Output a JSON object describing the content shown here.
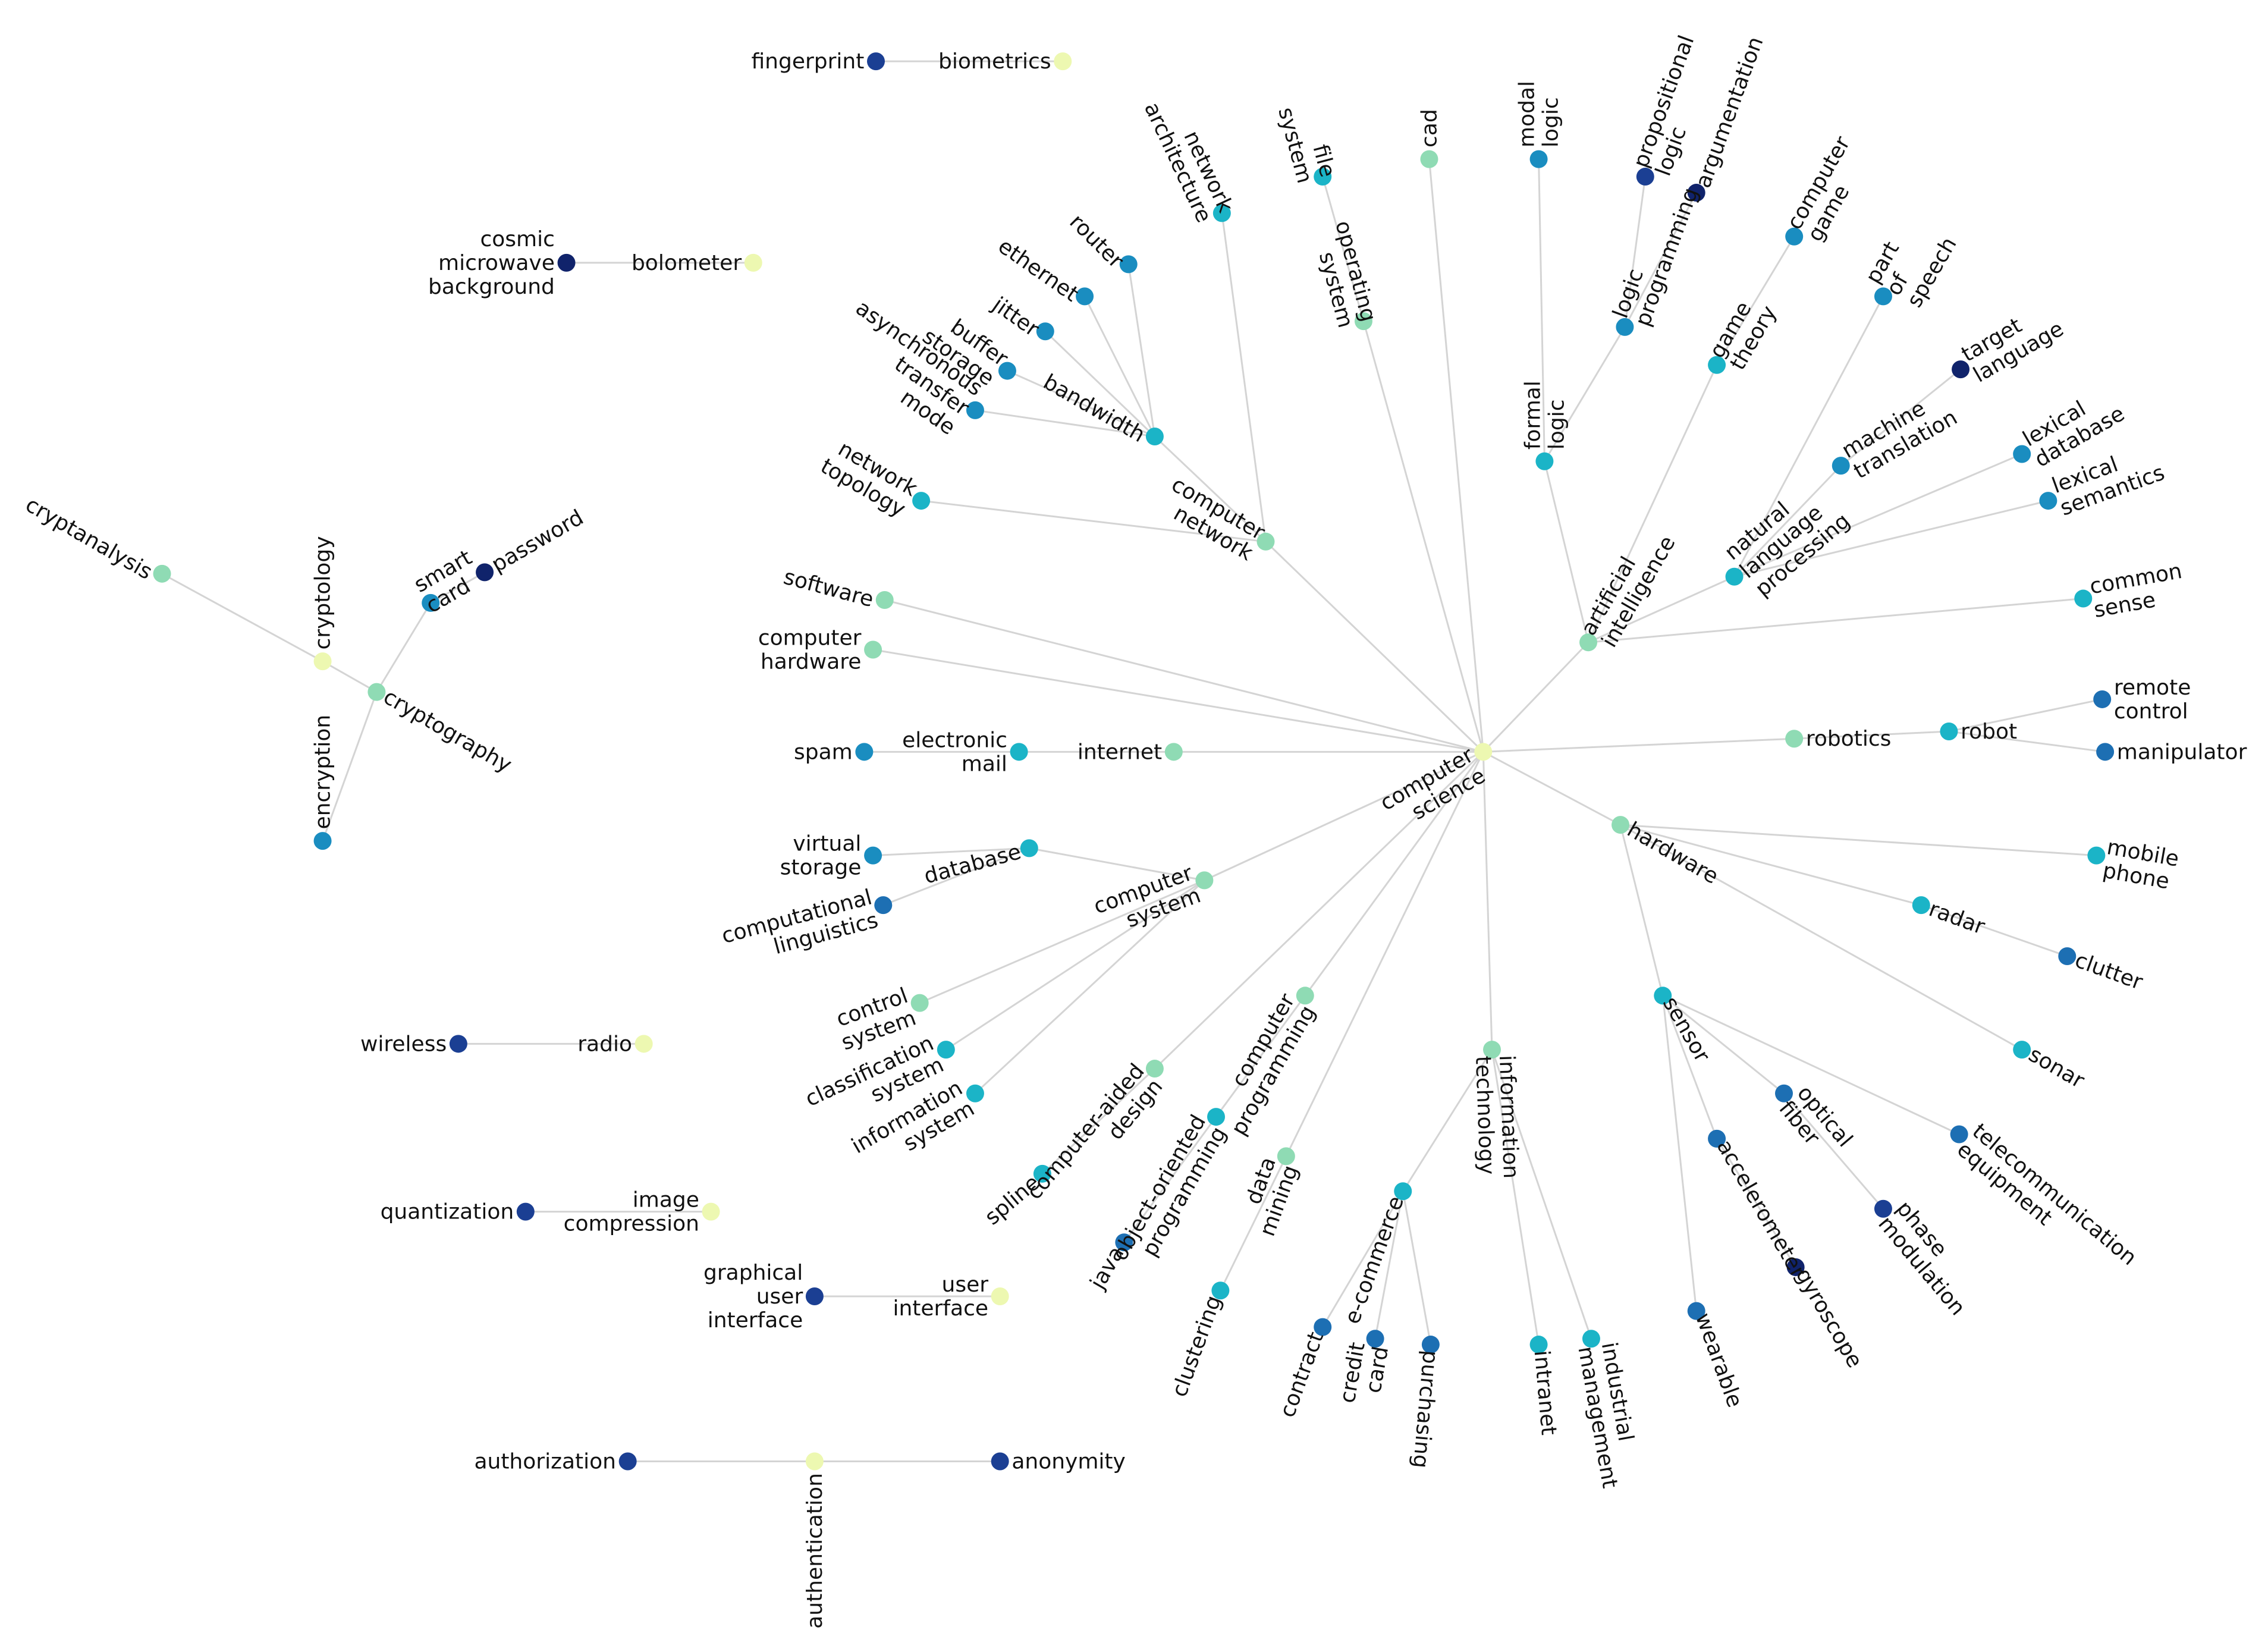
{
  "palette": {
    "level0": "#edf8b1",
    "level1": "#8fdbb4",
    "level1b": "#5fcfc0",
    "level2": "#1bb4c7",
    "level3": "#1a8dc0",
    "level4": "#1d6fb3",
    "level5": "#1b3f93",
    "level6": "#10236b",
    "edge": "#d4d4d4"
  },
  "nodes": [
    {
      "id": "fingerprint",
      "label": [
        "fingerprint"
      ],
      "level": 5
    },
    {
      "id": "biometrics",
      "label": [
        "biometrics"
      ],
      "level": 0
    },
    {
      "id": "cosmic",
      "label": [
        "cosmic",
        "microwave",
        "background"
      ],
      "level": 6
    },
    {
      "id": "bolometer",
      "label": [
        "bolometer"
      ],
      "level": 0
    },
    {
      "id": "cryptanalysis",
      "label": [
        "cryptanalysis"
      ],
      "level": 1
    },
    {
      "id": "cryptology",
      "label": [
        "cryptology"
      ],
      "level": 0
    },
    {
      "id": "cryptography",
      "label": [
        "cryptography"
      ],
      "level": 1
    },
    {
      "id": "smartcard",
      "label": [
        "smart",
        "card"
      ],
      "level": 3
    },
    {
      "id": "password",
      "label": [
        "password"
      ],
      "level": 6
    },
    {
      "id": "encryption",
      "label": [
        "encryption"
      ],
      "level": 3
    },
    {
      "id": "wireless",
      "label": [
        "wireless"
      ],
      "level": 5
    },
    {
      "id": "radio",
      "label": [
        "radio"
      ],
      "level": 0
    },
    {
      "id": "quantization",
      "label": [
        "quantization"
      ],
      "level": 5
    },
    {
      "id": "imagecomp",
      "label": [
        "image",
        "compression"
      ],
      "level": 0
    },
    {
      "id": "gui",
      "label": [
        "graphical",
        "user",
        "interface"
      ],
      "level": 5
    },
    {
      "id": "ui",
      "label": [
        "user",
        "interface"
      ],
      "level": 0
    },
    {
      "id": "authorization",
      "label": [
        "authorization"
      ],
      "level": 5
    },
    {
      "id": "authentication",
      "label": [
        "authentication"
      ],
      "level": 0
    },
    {
      "id": "anonymity",
      "label": [
        "anonymity"
      ],
      "level": 5
    },
    {
      "id": "cs",
      "label": [
        "computer",
        "science"
      ],
      "level": 0
    },
    {
      "id": "software",
      "label": [
        "software"
      ],
      "level": 1
    },
    {
      "id": "comphw",
      "label": [
        "computer",
        "hardware"
      ],
      "level": 1
    },
    {
      "id": "internet",
      "label": [
        "internet"
      ],
      "level": 1
    },
    {
      "id": "email",
      "label": [
        "electronic",
        "mail"
      ],
      "level": 2
    },
    {
      "id": "spam",
      "label": [
        "spam"
      ],
      "level": 3
    },
    {
      "id": "compnet",
      "label": [
        "computer",
        "network"
      ],
      "level": 1
    },
    {
      "id": "bandwidth",
      "label": [
        "bandwidth"
      ],
      "level": 2
    },
    {
      "id": "router",
      "label": [
        "router"
      ],
      "level": 3
    },
    {
      "id": "ethernet",
      "label": [
        "ethernet"
      ],
      "level": 3
    },
    {
      "id": "jitter",
      "label": [
        "jitter"
      ],
      "level": 3
    },
    {
      "id": "bufferstorage",
      "label": [
        "buffer",
        "storage"
      ],
      "level": 3
    },
    {
      "id": "atm",
      "label": [
        "asynchronous",
        "transfer",
        "mode"
      ],
      "level": 3
    },
    {
      "id": "netarch",
      "label": [
        "network",
        "architecture"
      ],
      "level": 2
    },
    {
      "id": "nettopo",
      "label": [
        "network",
        "topology"
      ],
      "level": 2
    },
    {
      "id": "os",
      "label": [
        "operating",
        "system"
      ],
      "level": 1
    },
    {
      "id": "filesystem",
      "label": [
        "file",
        "system"
      ],
      "level": 2
    },
    {
      "id": "cad",
      "label": [
        "cad"
      ],
      "level": 1
    },
    {
      "id": "ai",
      "label": [
        "artificial",
        "intelligence"
      ],
      "level": 1
    },
    {
      "id": "formallogic",
      "label": [
        "formal",
        "logic"
      ],
      "level": 2
    },
    {
      "id": "modallogic",
      "label": [
        "modal",
        "logic"
      ],
      "level": 3
    },
    {
      "id": "logicprog",
      "label": [
        "logic",
        "programming"
      ],
      "level": 3
    },
    {
      "id": "proplogic",
      "label": [
        "propositional",
        "logic"
      ],
      "level": 5
    },
    {
      "id": "argumentation",
      "label": [
        "argumentation"
      ],
      "level": 6
    },
    {
      "id": "gametheory",
      "label": [
        "game",
        "theory"
      ],
      "level": 2
    },
    {
      "id": "compgame",
      "label": [
        "computer",
        "game"
      ],
      "level": 3
    },
    {
      "id": "nlp",
      "label": [
        "natural",
        "language",
        "processing"
      ],
      "level": 2
    },
    {
      "id": "pos",
      "label": [
        "part",
        "of",
        "speech"
      ],
      "level": 3
    },
    {
      "id": "mt",
      "label": [
        "machine",
        "translation"
      ],
      "level": 3
    },
    {
      "id": "targetlang",
      "label": [
        "target",
        "language"
      ],
      "level": 6
    },
    {
      "id": "lexdb",
      "label": [
        "lexical",
        "database"
      ],
      "level": 3
    },
    {
      "id": "lexsem",
      "label": [
        "lexical",
        "semantics"
      ],
      "level": 3
    },
    {
      "id": "commonsense",
      "label": [
        "common",
        "sense"
      ],
      "level": 2
    },
    {
      "id": "robotics",
      "label": [
        "robotics"
      ],
      "level": 1
    },
    {
      "id": "robot",
      "label": [
        "robot"
      ],
      "level": 2
    },
    {
      "id": "remote",
      "label": [
        "remote",
        "control"
      ],
      "level": 4
    },
    {
      "id": "manipulator",
      "label": [
        "manipulator"
      ],
      "level": 4
    },
    {
      "id": "hardware",
      "label": [
        "hardware"
      ],
      "level": 1
    },
    {
      "id": "mobile",
      "label": [
        "mobile",
        "phone"
      ],
      "level": 2
    },
    {
      "id": "radar",
      "label": [
        "radar"
      ],
      "level": 2
    },
    {
      "id": "clutter",
      "label": [
        "clutter"
      ],
      "level": 4
    },
    {
      "id": "sonar",
      "label": [
        "sonar"
      ],
      "level": 2
    },
    {
      "id": "sensor",
      "label": [
        "sensor"
      ],
      "level": 2
    },
    {
      "id": "optical",
      "label": [
        "optical",
        "fiber"
      ],
      "level": 4
    },
    {
      "id": "phasemod",
      "label": [
        "phase",
        "modulation"
      ],
      "level": 5
    },
    {
      "id": "telecom",
      "label": [
        "telecommunication",
        "equipment"
      ],
      "level": 4
    },
    {
      "id": "accel",
      "label": [
        "accelerometer"
      ],
      "level": 4
    },
    {
      "id": "gyroscope",
      "label": [
        "gyroscope"
      ],
      "level": 6
    },
    {
      "id": "wearable",
      "label": [
        "wearable"
      ],
      "level": 4
    },
    {
      "id": "infotech",
      "label": [
        "information",
        "technology"
      ],
      "level": 1
    },
    {
      "id": "ecommerce",
      "label": [
        "e-commerce"
      ],
      "level": 2
    },
    {
      "id": "contract",
      "label": [
        "contract"
      ],
      "level": 4
    },
    {
      "id": "creditcard",
      "label": [
        "credit",
        "card"
      ],
      "level": 4
    },
    {
      "id": "purchasing",
      "label": [
        "purchasing"
      ],
      "level": 4
    },
    {
      "id": "intranet",
      "label": [
        "intranet"
      ],
      "level": 2
    },
    {
      "id": "indmgmt",
      "label": [
        "industrial",
        "management"
      ],
      "level": 2
    },
    {
      "id": "datamining",
      "label": [
        "data",
        "mining"
      ],
      "level": 1
    },
    {
      "id": "clustering",
      "label": [
        "clustering"
      ],
      "level": 2
    },
    {
      "id": "oop",
      "label": [
        "computer",
        "programming"
      ],
      "level": 1
    },
    {
      "id": "objoriented",
      "label": [
        "object-oriented",
        "programming"
      ],
      "level": 2
    },
    {
      "id": "java",
      "label": [
        "java"
      ],
      "level": 4
    },
    {
      "id": "caddesign",
      "label": [
        "computer-aided",
        "design"
      ],
      "level": 1
    },
    {
      "id": "spline",
      "label": [
        "spline"
      ],
      "level": 2
    },
    {
      "id": "compsys",
      "label": [
        "computer",
        "system"
      ],
      "level": 1
    },
    {
      "id": "database",
      "label": [
        "database"
      ],
      "level": 2
    },
    {
      "id": "virtstorage",
      "label": [
        "virtual",
        "storage"
      ],
      "level": 3
    },
    {
      "id": "complinguistics",
      "label": [
        "computational",
        "linguistics"
      ],
      "level": 4
    },
    {
      "id": "controlsys",
      "label": [
        "control",
        "system"
      ],
      "level": 1
    },
    {
      "id": "classsys",
      "label": [
        "classification",
        "system"
      ],
      "level": 2
    },
    {
      "id": "infosys",
      "label": [
        "information",
        "system"
      ],
      "level": 2
    }
  ],
  "edges": [
    [
      "fingerprint",
      "biometrics"
    ],
    [
      "cosmic",
      "bolometer"
    ],
    [
      "cryptanalysis",
      "cryptology"
    ],
    [
      "cryptology",
      "cryptography"
    ],
    [
      "cryptography",
      "smartcard"
    ],
    [
      "smartcard",
      "password"
    ],
    [
      "cryptography",
      "encryption"
    ],
    [
      "wireless",
      "radio"
    ],
    [
      "quantization",
      "imagecomp"
    ],
    [
      "gui",
      "ui"
    ],
    [
      "authorization",
      "authentication"
    ],
    [
      "authentication",
      "anonymity"
    ],
    [
      "cs",
      "software"
    ],
    [
      "cs",
      "comphw"
    ],
    [
      "cs",
      "internet"
    ],
    [
      "internet",
      "email"
    ],
    [
      "email",
      "spam"
    ],
    [
      "cs",
      "compnet"
    ],
    [
      "compnet",
      "bandwidth"
    ],
    [
      "bandwidth",
      "router"
    ],
    [
      "bandwidth",
      "ethernet"
    ],
    [
      "bandwidth",
      "jitter"
    ],
    [
      "bandwidth",
      "bufferstorage"
    ],
    [
      "bandwidth",
      "atm"
    ],
    [
      "compnet",
      "netarch"
    ],
    [
      "compnet",
      "nettopo"
    ],
    [
      "cs",
      "os"
    ],
    [
      "os",
      "filesystem"
    ],
    [
      "cs",
      "cad"
    ],
    [
      "cs",
      "ai"
    ],
    [
      "ai",
      "formallogic"
    ],
    [
      "formallogic",
      "modallogic"
    ],
    [
      "formallogic",
      "logicprog"
    ],
    [
      "logicprog",
      "proplogic"
    ],
    [
      "logicprog",
      "argumentation"
    ],
    [
      "ai",
      "gametheory"
    ],
    [
      "gametheory",
      "compgame"
    ],
    [
      "ai",
      "nlp"
    ],
    [
      "nlp",
      "pos"
    ],
    [
      "nlp",
      "mt"
    ],
    [
      "mt",
      "targetlang"
    ],
    [
      "nlp",
      "lexdb"
    ],
    [
      "nlp",
      "lexsem"
    ],
    [
      "ai",
      "commonsense"
    ],
    [
      "cs",
      "robotics"
    ],
    [
      "robotics",
      "robot"
    ],
    [
      "robot",
      "remote"
    ],
    [
      "robot",
      "manipulator"
    ],
    [
      "cs",
      "hardware"
    ],
    [
      "hardware",
      "mobile"
    ],
    [
      "hardware",
      "radar"
    ],
    [
      "radar",
      "clutter"
    ],
    [
      "hardware",
      "sonar"
    ],
    [
      "hardware",
      "sensor"
    ],
    [
      "sensor",
      "optical"
    ],
    [
      "optical",
      "phasemod"
    ],
    [
      "sensor",
      "telecom"
    ],
    [
      "sensor",
      "accel"
    ],
    [
      "accel",
      "gyroscope"
    ],
    [
      "sensor",
      "wearable"
    ],
    [
      "cs",
      "infotech"
    ],
    [
      "infotech",
      "ecommerce"
    ],
    [
      "ecommerce",
      "contract"
    ],
    [
      "ecommerce",
      "creditcard"
    ],
    [
      "ecommerce",
      "purchasing"
    ],
    [
      "infotech",
      "intranet"
    ],
    [
      "infotech",
      "indmgmt"
    ],
    [
      "cs",
      "datamining"
    ],
    [
      "datamining",
      "clustering"
    ],
    [
      "cs",
      "oop"
    ],
    [
      "oop",
      "objoriented"
    ],
    [
      "objoriented",
      "java"
    ],
    [
      "cs",
      "caddesign"
    ],
    [
      "caddesign",
      "spline"
    ],
    [
      "cs",
      "compsys"
    ],
    [
      "compsys",
      "database"
    ],
    [
      "database",
      "virtstorage"
    ],
    [
      "database",
      "complinguistics"
    ],
    [
      "compsys",
      "controlsys"
    ],
    [
      "compsys",
      "classsys"
    ],
    [
      "compsys",
      "infosys"
    ]
  ]
}
